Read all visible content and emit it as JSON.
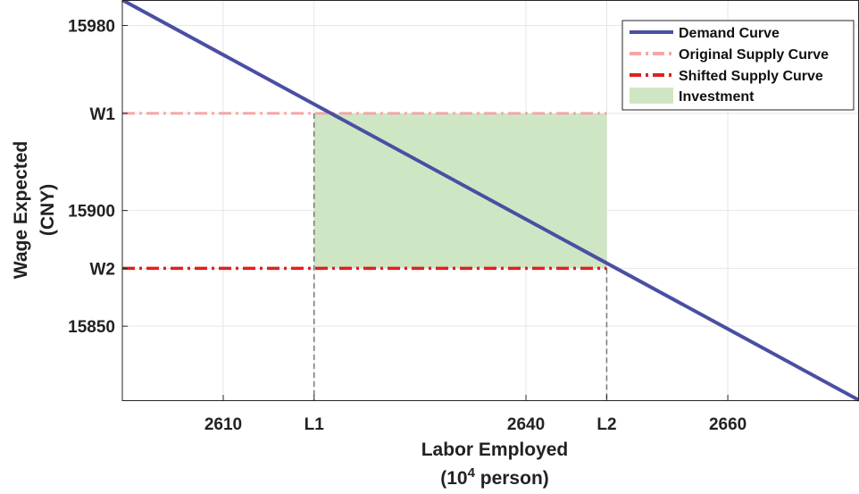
{
  "chart_data": {
    "type": "line",
    "title": "",
    "xlabel": "Labor Employed",
    "xlabel_line2_prefix": "(10",
    "xlabel_line2_sup": "4",
    "xlabel_line2_suffix": " person)",
    "ylabel": "Wage Expected",
    "ylabel_line2": "(CNY)",
    "xlim": [
      2600,
      2673
    ],
    "ylim": [
      15818,
      15991
    ],
    "grid": true,
    "legend_position": "top-right",
    "x_ticks": [
      {
        "value": 2610,
        "label": "2610"
      },
      {
        "value": 2619,
        "label": "L1"
      },
      {
        "value": 2640,
        "label": "2640"
      },
      {
        "value": 2648,
        "label": "L2"
      },
      {
        "value": 2660,
        "label": "2660"
      }
    ],
    "y_ticks": [
      {
        "value": 15980,
        "label": "15980"
      },
      {
        "value": 15942,
        "label": "W1"
      },
      {
        "value": 15900,
        "label": "15900"
      },
      {
        "value": 15875,
        "label": "W2"
      },
      {
        "value": 15850,
        "label": "15850"
      }
    ],
    "series": [
      {
        "name": "Demand Curve",
        "color": "#4a4fa3",
        "style": "solid",
        "x": [
          2600,
          2673
        ],
        "y": [
          15991,
          15818
        ]
      },
      {
        "name": "Original Supply Curve",
        "color": "#f4a6a6",
        "style": "dashdot",
        "x": [
          2600,
          2648
        ],
        "y": [
          15942,
          15942
        ]
      },
      {
        "name": "Shifted Supply Curve",
        "color": "#e02020",
        "style": "dashdot",
        "x": [
          2600,
          2648
        ],
        "y": [
          15875,
          15875
        ]
      },
      {
        "name": "Investment",
        "color": "#cfe6c4",
        "style": "area",
        "x": [
          2619,
          2648
        ],
        "y": [
          15875,
          15942
        ]
      }
    ],
    "vlines": [
      {
        "x": 2619,
        "y_top": 15942,
        "color": "#777777"
      },
      {
        "x": 2648,
        "y_top": 15875,
        "color": "#777777"
      }
    ]
  }
}
